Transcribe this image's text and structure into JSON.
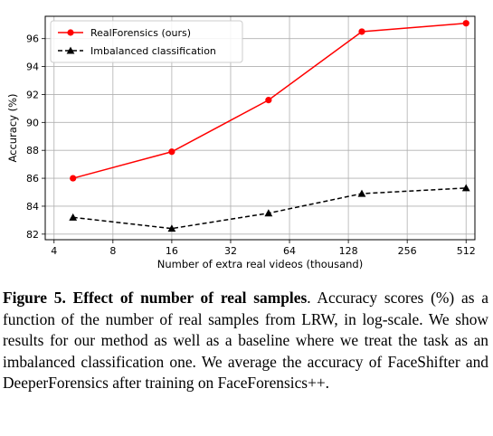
{
  "chart_data": {
    "type": "line",
    "x_scale": "log2",
    "x": [
      5,
      16,
      50,
      150,
      512
    ],
    "xticks": [
      4,
      8,
      16,
      32,
      64,
      128,
      256,
      512
    ],
    "xlabel": "Number of extra real videos (thousand)",
    "ylabel": "Accuracy (%)",
    "ylim": [
      81.6,
      97.6
    ],
    "yticks": [
      82,
      84,
      86,
      88,
      90,
      92,
      94,
      96
    ],
    "grid": true,
    "legend_position": "top-left",
    "series": [
      {
        "name": "RealForensics (ours)",
        "values": [
          86.0,
          87.9,
          91.6,
          96.5,
          97.1
        ],
        "color": "#ff0000",
        "style": "solid",
        "marker": "circle"
      },
      {
        "name": "Imbalanced classification",
        "values": [
          83.2,
          82.4,
          83.5,
          84.9,
          85.3
        ],
        "color": "#000000",
        "style": "dashed",
        "marker": "triangle"
      }
    ]
  },
  "caption": {
    "label": "Figure 5.",
    "title": "Effect of number of real samples",
    "text": ". Accuracy scores (%) as a function of the number of real samples from LRW, in log-scale. We show results for our method as well as a baseline where we treat the task as an imbalanced classification one. We average the accuracy of FaceShifter and DeeperForensics after training on FaceForensics++."
  }
}
